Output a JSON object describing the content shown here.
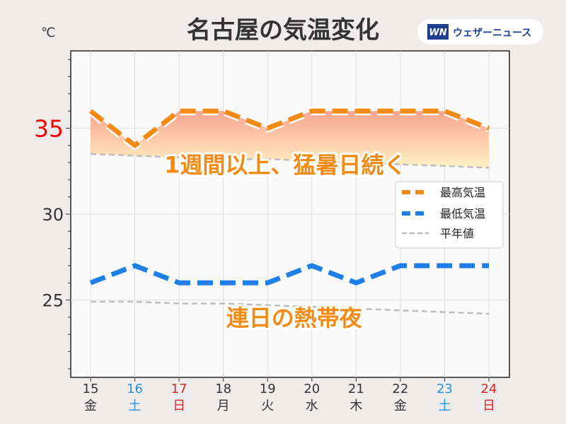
{
  "brand": {
    "logo_mark": "WN",
    "name": "ウェザーニュース",
    "colors": {
      "navy": "#1e3f8f",
      "pill": "#ffffff"
    }
  },
  "colors": {
    "high": "#f28a14",
    "low": "#1f7fe8",
    "normal": "#bdbdbd",
    "ytick_highlight": "#ff0000",
    "saturday": "#2b8fe0",
    "sunday": "#d9262c",
    "weekday": "#333333",
    "plot_bg": "#fbfafb",
    "grid": "#dddddd"
  },
  "chart_data": {
    "type": "line",
    "title": "名古屋の気温変化",
    "yunit": "℃",
    "ylim": [
      20.5,
      39.5
    ],
    "yticks": [
      25,
      30,
      35
    ],
    "ytick_labels": [
      "25",
      "30",
      "35"
    ],
    "ytick_highlight": 35,
    "grid": true,
    "legend_position": "center-right",
    "x": [
      "15",
      "16",
      "17",
      "18",
      "19",
      "20",
      "21",
      "22",
      "23",
      "24"
    ],
    "weekdays": [
      "金",
      "土",
      "日",
      "月",
      "火",
      "水",
      "木",
      "金",
      "土",
      "日"
    ],
    "day_types": [
      "weekday",
      "saturday",
      "sunday",
      "weekday",
      "weekday",
      "weekday",
      "weekday",
      "weekday",
      "saturday",
      "sunday"
    ],
    "series": [
      {
        "key": "high",
        "name": "最高気温",
        "values": [
          36,
          34,
          36,
          36,
          35,
          36,
          36,
          36,
          36,
          35
        ]
      },
      {
        "key": "low",
        "name": "最低気温",
        "values": [
          26,
          27,
          26,
          26,
          26,
          27,
          26,
          27,
          27,
          27
        ]
      },
      {
        "key": "normal_high",
        "name": "平年値",
        "values": [
          33.5,
          33.4,
          33.3,
          33.2,
          33.2,
          33.1,
          33.0,
          32.9,
          32.8,
          32.7
        ]
      },
      {
        "key": "normal_low",
        "name": "",
        "values": [
          24.9,
          24.9,
          24.8,
          24.8,
          24.7,
          24.6,
          24.5,
          24.4,
          24.3,
          24.2
        ]
      }
    ],
    "annotations": [
      {
        "text": "1週間以上、猛暑日続く",
        "x_index": 4.4,
        "y": 32.4
      },
      {
        "text": "連日の熱帯夜",
        "x_index": 4.6,
        "y": 23.5
      }
    ]
  }
}
